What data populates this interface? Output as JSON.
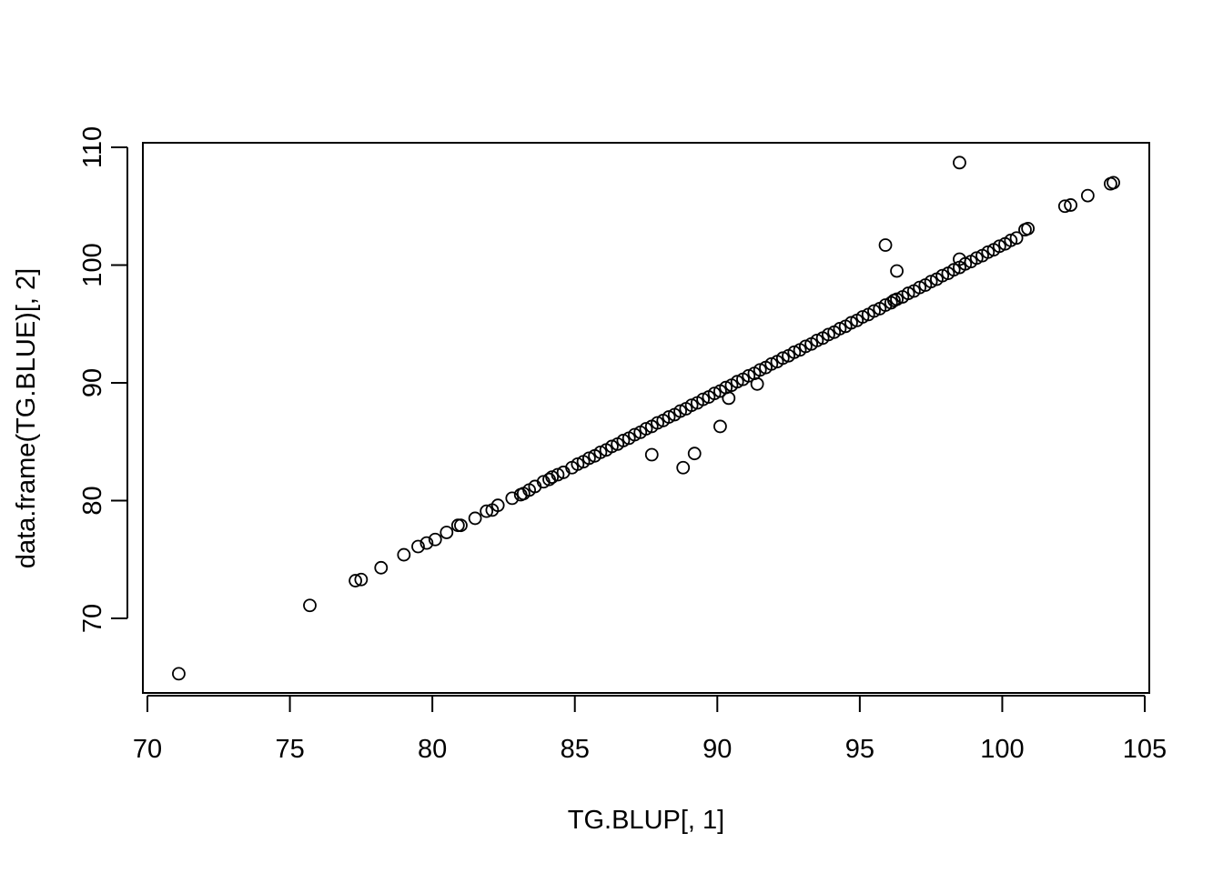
{
  "chart_data": {
    "type": "scatter",
    "title": "",
    "xlabel": "TG.BLUP[, 1]",
    "ylabel": "data.frame(TG.BLUE)[, 2]",
    "xlim": [
      70,
      105
    ],
    "ylim": [
      63.5,
      110
    ],
    "x_ticks": [
      70,
      75,
      80,
      85,
      90,
      95,
      100,
      105
    ],
    "y_ticks": [
      70,
      80,
      90,
      100,
      110
    ],
    "grid": false,
    "marker": "open-circle",
    "color": "#000000",
    "points": [
      [
        71.1,
        65.3
      ],
      [
        75.7,
        71.1
      ],
      [
        77.3,
        73.2
      ],
      [
        77.5,
        73.3
      ],
      [
        78.2,
        74.3
      ],
      [
        79.0,
        75.4
      ],
      [
        79.5,
        76.1
      ],
      [
        79.8,
        76.4
      ],
      [
        80.1,
        76.7
      ],
      [
        80.5,
        77.3
      ],
      [
        80.9,
        77.9
      ],
      [
        81.0,
        77.9
      ],
      [
        81.5,
        78.5
      ],
      [
        81.9,
        79.1
      ],
      [
        82.1,
        79.2
      ],
      [
        82.3,
        79.6
      ],
      [
        82.8,
        80.2
      ],
      [
        83.1,
        80.5
      ],
      [
        83.2,
        80.6
      ],
      [
        83.4,
        80.9
      ],
      [
        83.6,
        81.2
      ],
      [
        83.9,
        81.6
      ],
      [
        84.1,
        81.8
      ],
      [
        84.2,
        82.0
      ],
      [
        84.4,
        82.2
      ],
      [
        84.6,
        82.4
      ],
      [
        84.9,
        82.8
      ],
      [
        85.1,
        83.1
      ],
      [
        85.3,
        83.3
      ],
      [
        85.5,
        83.6
      ],
      [
        85.7,
        83.8
      ],
      [
        85.9,
        84.1
      ],
      [
        86.1,
        84.3
      ],
      [
        86.3,
        84.6
      ],
      [
        86.5,
        84.8
      ],
      [
        86.7,
        85.1
      ],
      [
        86.9,
        85.3
      ],
      [
        87.1,
        85.6
      ],
      [
        87.3,
        85.8
      ],
      [
        87.5,
        86.1
      ],
      [
        87.7,
        86.3
      ],
      [
        87.9,
        86.6
      ],
      [
        88.1,
        86.8
      ],
      [
        88.3,
        87.1
      ],
      [
        88.5,
        87.3
      ],
      [
        88.7,
        87.6
      ],
      [
        88.9,
        87.8
      ],
      [
        89.1,
        88.1
      ],
      [
        89.3,
        88.3
      ],
      [
        89.5,
        88.6
      ],
      [
        89.7,
        88.8
      ],
      [
        89.9,
        89.1
      ],
      [
        90.1,
        89.3
      ],
      [
        90.3,
        89.6
      ],
      [
        90.5,
        89.8
      ],
      [
        90.7,
        90.1
      ],
      [
        90.9,
        90.3
      ],
      [
        91.1,
        90.6
      ],
      [
        91.3,
        90.8
      ],
      [
        91.5,
        91.1
      ],
      [
        91.7,
        91.3
      ],
      [
        91.9,
        91.6
      ],
      [
        92.1,
        91.8
      ],
      [
        92.3,
        92.1
      ],
      [
        92.5,
        92.3
      ],
      [
        92.7,
        92.6
      ],
      [
        92.9,
        92.8
      ],
      [
        93.1,
        93.1
      ],
      [
        93.3,
        93.3
      ],
      [
        93.5,
        93.6
      ],
      [
        93.7,
        93.8
      ],
      [
        93.9,
        94.1
      ],
      [
        94.1,
        94.3
      ],
      [
        94.3,
        94.6
      ],
      [
        94.5,
        94.8
      ],
      [
        94.7,
        95.1
      ],
      [
        94.9,
        95.3
      ],
      [
        95.1,
        95.6
      ],
      [
        95.3,
        95.8
      ],
      [
        95.5,
        96.1
      ],
      [
        95.7,
        96.3
      ],
      [
        95.9,
        96.6
      ],
      [
        96.1,
        96.8
      ],
      [
        96.3,
        97.1
      ],
      [
        96.5,
        97.3
      ],
      [
        96.7,
        97.6
      ],
      [
        96.9,
        97.8
      ],
      [
        97.1,
        98.1
      ],
      [
        97.3,
        98.3
      ],
      [
        97.5,
        98.6
      ],
      [
        97.7,
        98.8
      ],
      [
        97.9,
        99.1
      ],
      [
        98.1,
        99.3
      ],
      [
        98.3,
        99.6
      ],
      [
        98.5,
        99.8
      ],
      [
        98.7,
        100.1
      ],
      [
        98.9,
        100.3
      ],
      [
        99.1,
        100.6
      ],
      [
        99.3,
        100.8
      ],
      [
        99.5,
        101.1
      ],
      [
        99.7,
        101.3
      ],
      [
        99.9,
        101.6
      ],
      [
        100.1,
        101.8
      ],
      [
        100.3,
        102.1
      ],
      [
        100.5,
        102.3
      ],
      [
        100.8,
        103.0
      ],
      [
        100.9,
        103.1
      ],
      [
        102.2,
        105.0
      ],
      [
        102.4,
        105.1
      ],
      [
        103.0,
        105.9
      ],
      [
        103.8,
        106.9
      ],
      [
        103.9,
        107.0
      ],
      [
        98.5,
        100.5
      ],
      [
        96.2,
        97.0
      ],
      [
        98.5,
        108.7
      ],
      [
        95.9,
        101.7
      ],
      [
        96.3,
        99.5
      ],
      [
        91.4,
        89.9
      ],
      [
        90.4,
        88.7
      ],
      [
        90.1,
        86.3
      ],
      [
        87.7,
        83.9
      ],
      [
        88.8,
        82.8
      ],
      [
        89.2,
        84.0
      ]
    ]
  }
}
